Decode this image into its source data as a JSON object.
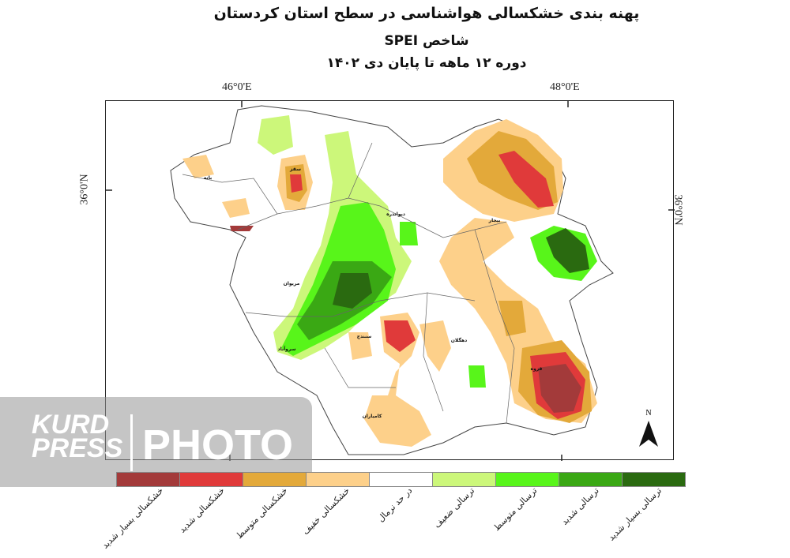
{
  "title": {
    "line1": "پهنه بندی خشکسالی هواشناسی در سطح استان کردستان",
    "line2": "شاخص SPEI",
    "line3": "دوره ۱۲ ماهه تا پایان دی ۱۴۰۲"
  },
  "coords": {
    "lon_left": "46°0'E",
    "lon_right": "48°0'E",
    "lat_left": "36°0'N",
    "lat_right": "36°0'N"
  },
  "north": "N",
  "cities": [
    "سقز",
    "بانه",
    "دیواندره",
    "بیجار",
    "مریوان",
    "سنندج",
    "سروآباد",
    "دهگلان",
    "قروه",
    "کامیاران"
  ],
  "legend": [
    {
      "label": "خشکسالی بسیار شدید",
      "color": "#a33a3a"
    },
    {
      "label": "خشکسالی شدید",
      "color": "#e03a3a"
    },
    {
      "label": "خشکسالی متوسط",
      "color": "#e3a93a"
    },
    {
      "label": "خشکسالی خفیف",
      "color": "#fdd08a"
    },
    {
      "label": "در حد نرمال",
      "color": "#ffffff"
    },
    {
      "label": "ترسالی ضعیف",
      "color": "#ccf77a"
    },
    {
      "label": "ترسالی متوسط",
      "color": "#58f51a"
    },
    {
      "label": "ترسالی شدید",
      "color": "#3aa814"
    },
    {
      "label": "ترسالی بسیار شدید",
      "color": "#2a6a10"
    }
  ],
  "watermark": {
    "brand1": "KURD",
    "brand2": "PRESS",
    "word": "PHOTO"
  }
}
